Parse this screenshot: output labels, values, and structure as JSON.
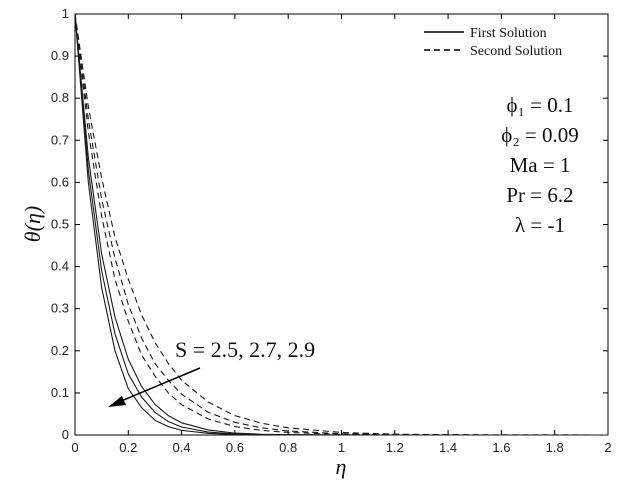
{
  "chart_data": {
    "type": "line",
    "xlabel": "η",
    "ylabel": "θ(η)",
    "xlim": [
      0,
      2
    ],
    "ylim": [
      0,
      1
    ],
    "x_ticks": [
      "0",
      "0.2",
      "0.4",
      "0.6",
      "0.8",
      "1",
      "1.2",
      "1.4",
      "1.6",
      "1.8",
      "2"
    ],
    "y_ticks": [
      "0",
      "0.1",
      "0.2",
      "0.3",
      "0.4",
      "0.5",
      "0.6",
      "0.7",
      "0.8",
      "0.9",
      "1"
    ],
    "grid": false,
    "legend": {
      "position": "top-right",
      "entries": [
        {
          "label": "First Solution",
          "style": "solid"
        },
        {
          "label": "Second Solution",
          "style": "dashed"
        }
      ]
    },
    "parameters": [
      "ϕ₁ = 0.1",
      "ϕ₂ = 0.09",
      "Ma = 1",
      "Pr = 6.2",
      "λ = -1"
    ],
    "annotation": "S = 2.5, 2.7, 2.9",
    "series": [
      {
        "group": "First Solution",
        "style": "solid",
        "S": "2.5",
        "x": [
          0,
          0.05,
          0.1,
          0.15,
          0.2,
          0.25,
          0.3,
          0.35,
          0.4,
          0.5,
          0.6,
          0.7,
          0.8,
          1.0,
          1.2,
          1.5,
          2.0
        ],
        "y": [
          1.0,
          0.6,
          0.35,
          0.2,
          0.11,
          0.065,
          0.035,
          0.02,
          0.011,
          0.004,
          0.0015,
          0.0006,
          0.0002,
          0.0,
          0.0,
          0.0,
          0.0
        ]
      },
      {
        "group": "First Solution",
        "style": "solid",
        "S": "2.7",
        "x": [
          0,
          0.05,
          0.1,
          0.15,
          0.2,
          0.25,
          0.3,
          0.35,
          0.4,
          0.5,
          0.6,
          0.7,
          0.8,
          1.0,
          1.2,
          1.5,
          2.0
        ],
        "y": [
          1.0,
          0.63,
          0.39,
          0.24,
          0.145,
          0.09,
          0.054,
          0.032,
          0.019,
          0.007,
          0.0025,
          0.001,
          0.0004,
          0.0,
          0.0,
          0.0,
          0.0
        ]
      },
      {
        "group": "First Solution",
        "style": "solid",
        "S": "2.9",
        "x": [
          0,
          0.05,
          0.1,
          0.15,
          0.2,
          0.25,
          0.3,
          0.35,
          0.4,
          0.5,
          0.6,
          0.7,
          0.8,
          1.0,
          1.2,
          1.5,
          2.0
        ],
        "y": [
          1.0,
          0.66,
          0.43,
          0.28,
          0.18,
          0.115,
          0.073,
          0.046,
          0.029,
          0.012,
          0.0045,
          0.0018,
          0.0007,
          0.0001,
          0.0,
          0.0,
          0.0
        ]
      },
      {
        "group": "Second Solution",
        "style": "dashed",
        "S": "2.5",
        "x": [
          0,
          0.05,
          0.1,
          0.15,
          0.2,
          0.25,
          0.3,
          0.35,
          0.4,
          0.5,
          0.6,
          0.7,
          0.8,
          1.0,
          1.2,
          1.4,
          1.6,
          2.0
        ],
        "y": [
          1.0,
          0.72,
          0.52,
          0.37,
          0.27,
          0.19,
          0.14,
          0.1,
          0.072,
          0.038,
          0.02,
          0.011,
          0.006,
          0.0017,
          0.0005,
          0.0001,
          0.0,
          0.0
        ]
      },
      {
        "group": "Second Solution",
        "style": "dashed",
        "S": "2.7",
        "x": [
          0,
          0.05,
          0.1,
          0.15,
          0.2,
          0.25,
          0.3,
          0.35,
          0.4,
          0.5,
          0.6,
          0.7,
          0.8,
          1.0,
          1.2,
          1.4,
          1.6,
          2.0
        ],
        "y": [
          1.0,
          0.75,
          0.56,
          0.42,
          0.31,
          0.23,
          0.17,
          0.13,
          0.097,
          0.054,
          0.03,
          0.017,
          0.0095,
          0.003,
          0.0009,
          0.0003,
          0.0001,
          0.0
        ]
      },
      {
        "group": "Second Solution",
        "style": "dashed",
        "S": "2.9",
        "x": [
          0,
          0.05,
          0.1,
          0.15,
          0.2,
          0.25,
          0.3,
          0.35,
          0.4,
          0.5,
          0.6,
          0.7,
          0.8,
          1.0,
          1.2,
          1.4,
          1.6,
          2.0
        ],
        "y": [
          1.0,
          0.78,
          0.61,
          0.47,
          0.37,
          0.285,
          0.22,
          0.17,
          0.13,
          0.078,
          0.046,
          0.028,
          0.017,
          0.006,
          0.002,
          0.0007,
          0.0002,
          0.0
        ]
      }
    ]
  }
}
